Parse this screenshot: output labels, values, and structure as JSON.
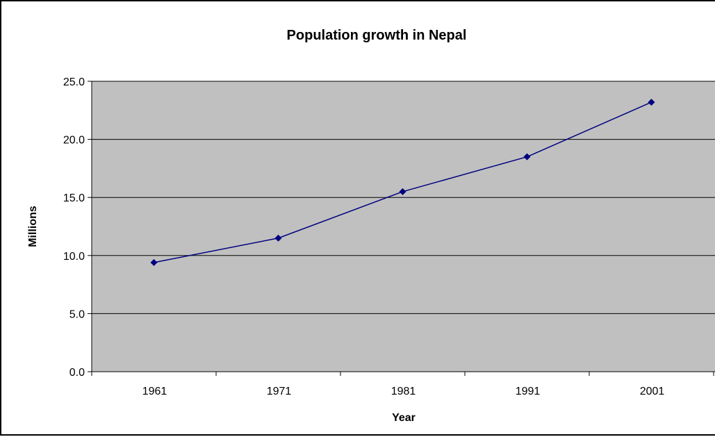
{
  "chart_data": {
    "type": "line",
    "title": "Population growth in Nepal",
    "xlabel": "Year",
    "ylabel": "Millions",
    "categories": [
      "1961",
      "1971",
      "1981",
      "1991",
      "2001"
    ],
    "series": [
      {
        "values": [
          9.4,
          11.5,
          15.5,
          18.5,
          23.2
        ],
        "color": "#000080"
      }
    ],
    "ylim": [
      0,
      25
    ],
    "yticks": [
      "0.0",
      "5.0",
      "10.0",
      "15.0",
      "20.0",
      "25.0"
    ],
    "grid": true,
    "legend": "none",
    "plot_background": "#c0c0c0",
    "marker": "diamond"
  }
}
